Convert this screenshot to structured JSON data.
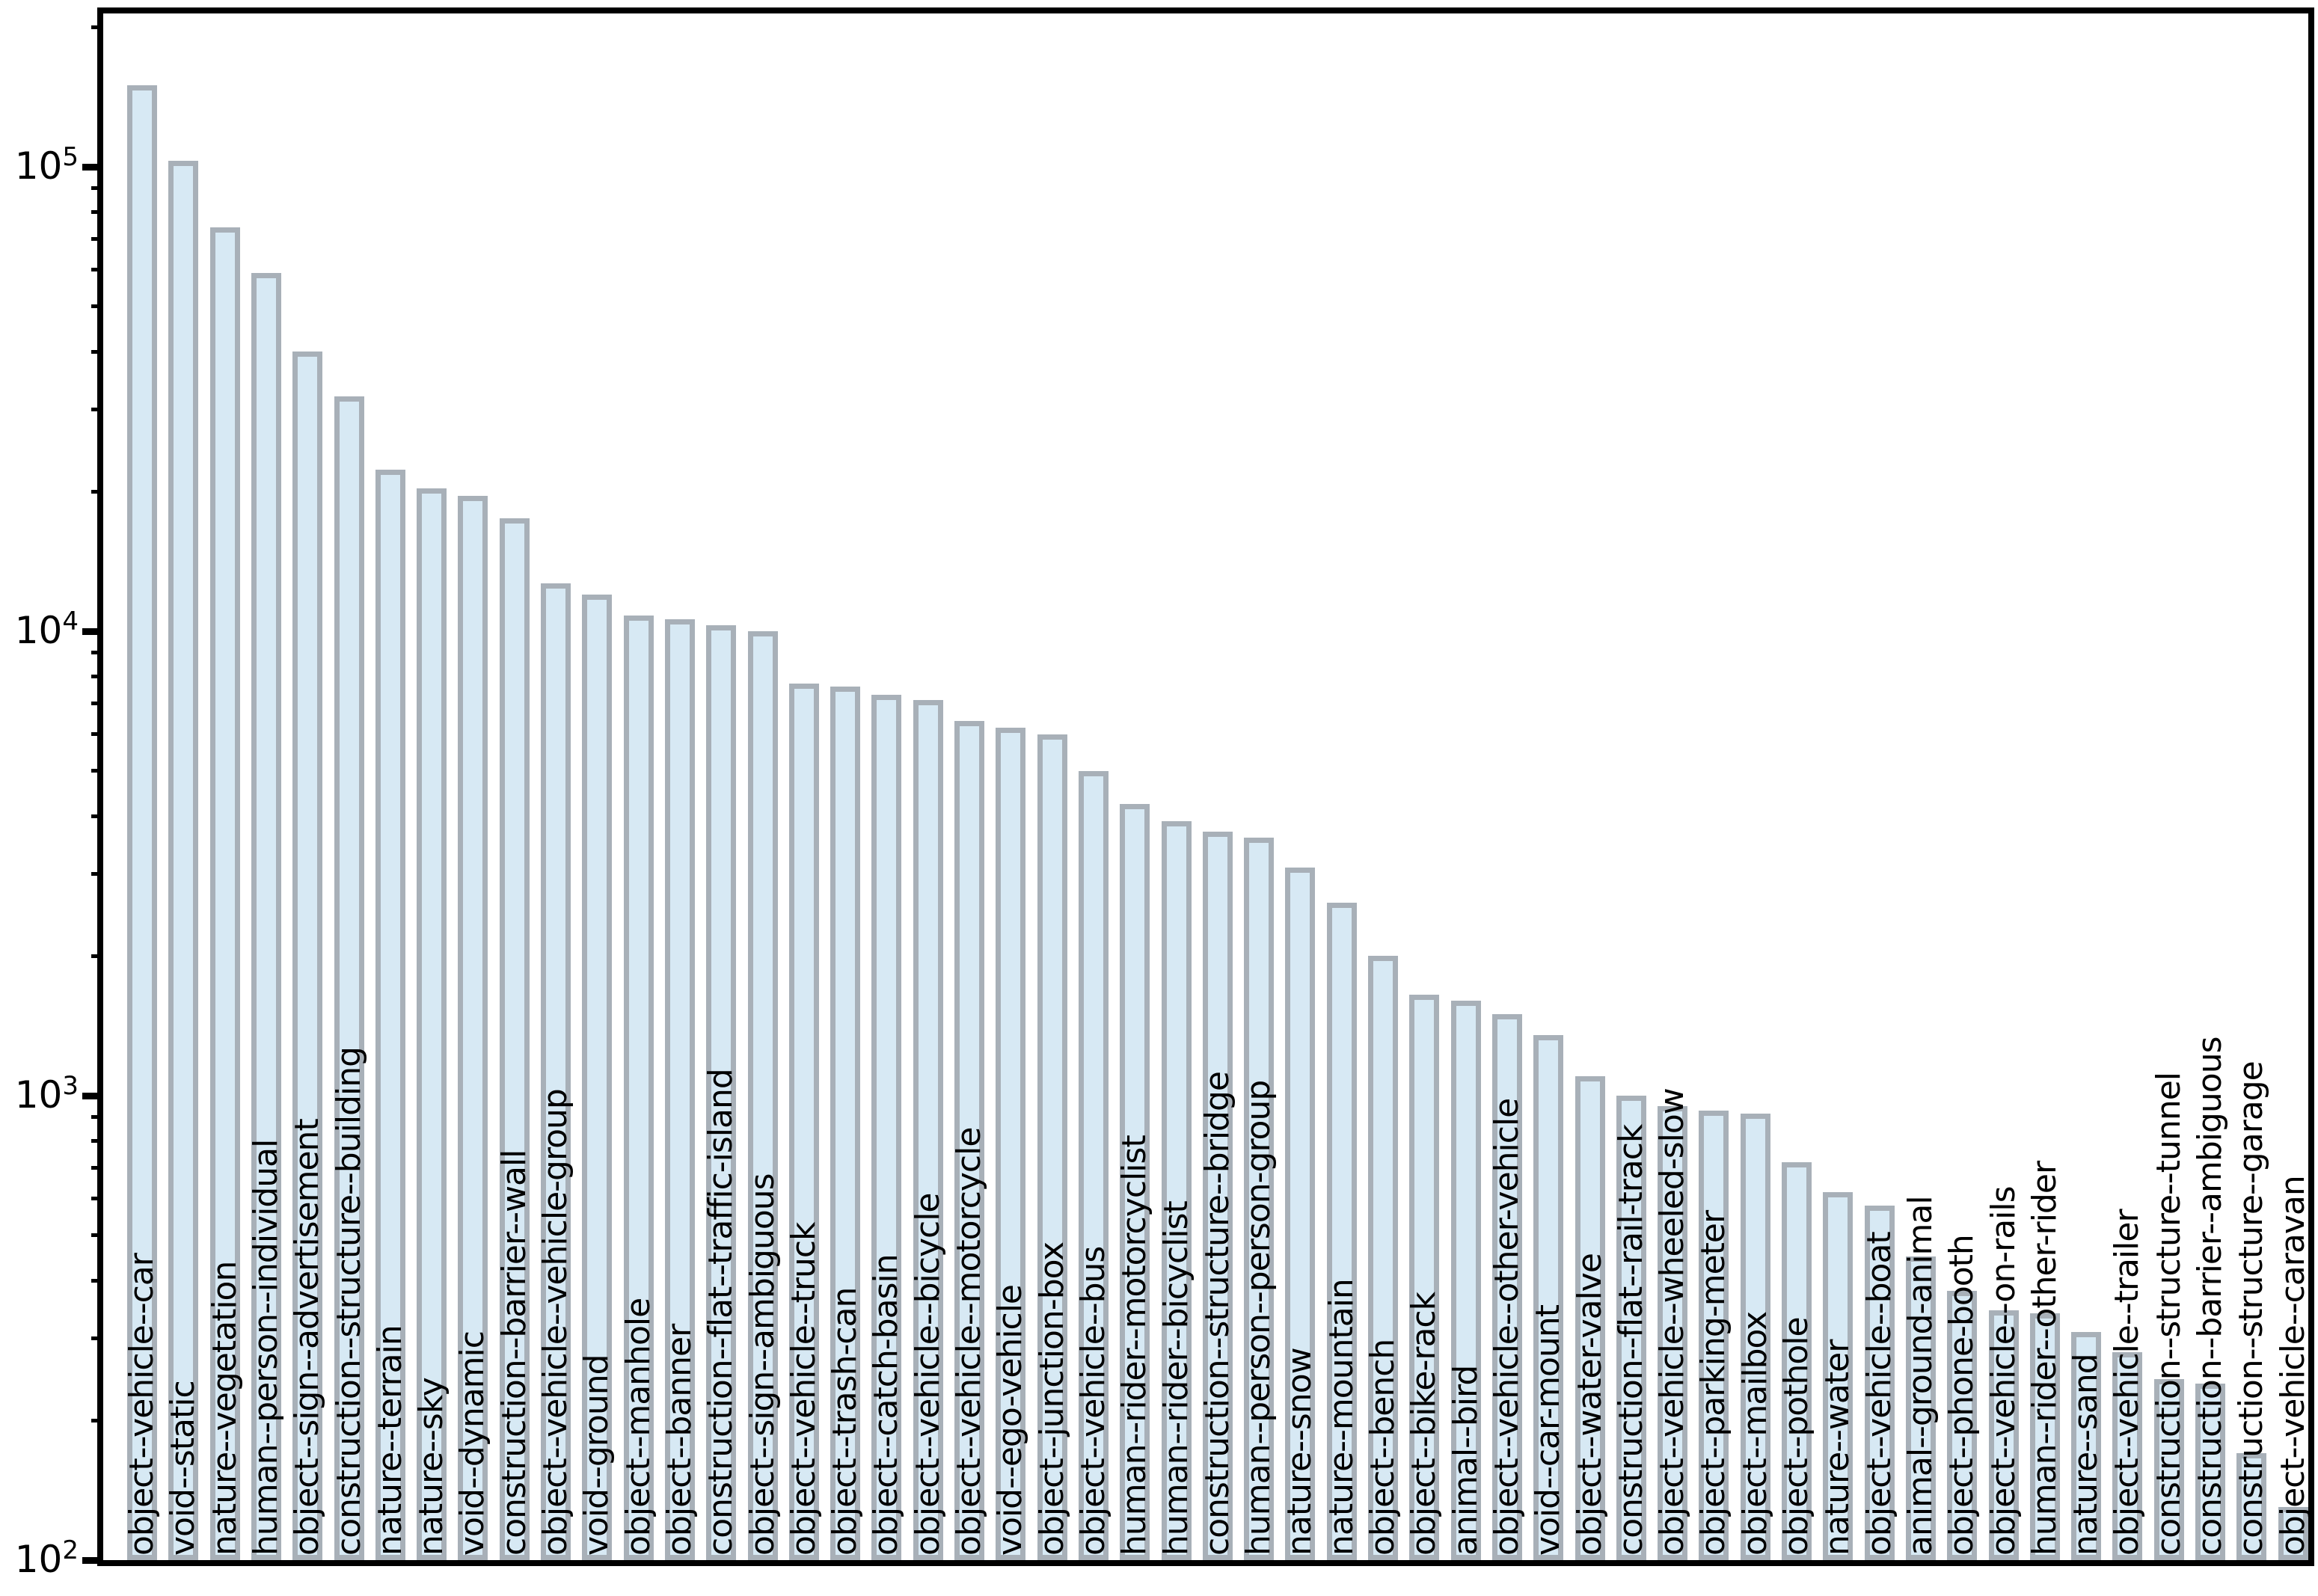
{
  "chart_data": {
    "type": "bar",
    "title": "",
    "xlabel": "",
    "ylabel": "",
    "yscale": "log",
    "ylim": [
      100,
      214000
    ],
    "grid": false,
    "legend": null,
    "ytick_base": "10",
    "ytick_exponents": [
      2,
      3,
      4,
      5
    ],
    "bar_fill_color": "#d7e9f4",
    "bar_border_color": "#a8b0b8",
    "axis_color": "#000000",
    "label_color": "#000000",
    "categories": [
      "object--vehicle--car",
      "void--static",
      "nature--vegetation",
      "human--person--individual",
      "object--sign--advertisement",
      "construction--structure--building",
      "nature--terrain",
      "nature--sky",
      "void--dynamic",
      "construction--barrier--wall",
      "object--vehicle--vehicle-group",
      "void--ground",
      "object--manhole",
      "object--banner",
      "construction--flat--traffic-island",
      "object--sign--ambiguous",
      "object--vehicle--truck",
      "object--trash-can",
      "object--catch-basin",
      "object--vehicle--bicycle",
      "object--vehicle--motorcycle",
      "void--ego-vehicle",
      "object--junction-box",
      "object--vehicle--bus",
      "human--rider--motorcyclist",
      "human--rider--bicyclist",
      "construction--structure--bridge",
      "human--person--person-group",
      "nature--snow",
      "nature--mountain",
      "object--bench",
      "object--bike-rack",
      "animal--bird",
      "object--vehicle--other-vehicle",
      "void--car-mount",
      "object--water-valve",
      "construction--flat--rail-track",
      "object--vehicle--wheeled-slow",
      "object--parking-meter",
      "object--mailbox",
      "object--pothole",
      "nature--water",
      "object--vehicle--boat",
      "animal--ground-animal",
      "object--phone-booth",
      "object--vehicle--on-rails",
      "human--rider--other-rider",
      "nature--sand",
      "object--vehicle--trailer",
      "construction--structure--tunnel",
      "construction--barrier--ambiguous",
      "construction--structure--garage",
      "object--vehicle--caravan"
    ],
    "values": [
      150000,
      103000,
      74000,
      59000,
      40000,
      32000,
      22300,
      20300,
      19600,
      17500,
      12700,
      12000,
      10800,
      10600,
      10300,
      10000,
      7700,
      7600,
      7300,
      7100,
      6400,
      6200,
      6000,
      5000,
      4250,
      3900,
      3700,
      3600,
      3100,
      2600,
      2000,
      1650,
      1600,
      1500,
      1350,
      1100,
      1000,
      950,
      930,
      915,
      720,
      620,
      580,
      450,
      380,
      345,
      340,
      310,
      280,
      245,
      240,
      170,
      130
    ]
  }
}
